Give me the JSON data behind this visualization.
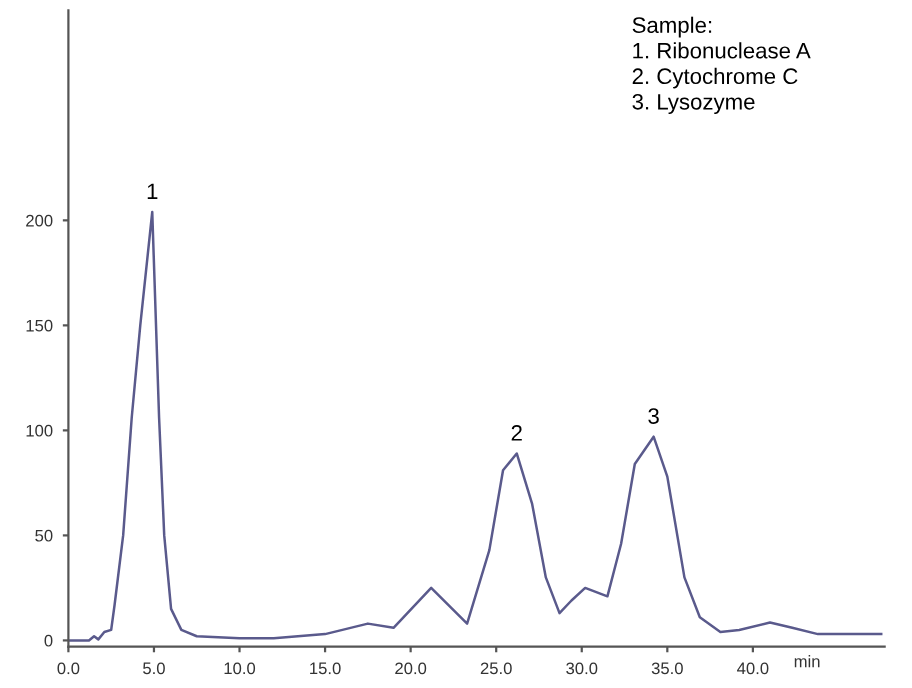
{
  "chart_data": {
    "type": "line",
    "xlabel": "min",
    "x": [
      0,
      1.2,
      1.5,
      1.75,
      2.1,
      2.5,
      2.7,
      3.2,
      3.7,
      4.2,
      4.9,
      5.3,
      5.6,
      6.0,
      6.6,
      7.5,
      10,
      12,
      15,
      17.5,
      19,
      21.2,
      23.3,
      24.6,
      25.4,
      26.2,
      27.1,
      27.9,
      28.7,
      29.4,
      30.2,
      31.5,
      32.3,
      33.1,
      34.2,
      35.0,
      36.0,
      36.9,
      38.1,
      39.2,
      41.0,
      42.3,
      43.8,
      47.5
    ],
    "series": [
      {
        "color": "#5a5a8c",
        "values": [
          0,
          0,
          2,
          0.5,
          4,
          5,
          17,
          50,
          106,
          150,
          204,
          106,
          50,
          15,
          5,
          2,
          1,
          1,
          3,
          8,
          6,
          25,
          8,
          43,
          81,
          89,
          65,
          30,
          13,
          19,
          25,
          21,
          46,
          84,
          97,
          78,
          30,
          11,
          4,
          5,
          8.5,
          6,
          3,
          3
        ]
      }
    ],
    "xlim": [
      0,
      47.7
    ],
    "ylim": [
      -3,
      300
    ],
    "xticks": [
      {
        "value": 0,
        "label": "0.0"
      },
      {
        "value": 5,
        "label": "5.0"
      },
      {
        "value": 10,
        "label": "10.0"
      },
      {
        "value": 15,
        "label": "15.0"
      },
      {
        "value": 20,
        "label": "20.0"
      },
      {
        "value": 25,
        "label": "25.0"
      },
      {
        "value": 30,
        "label": "30.0"
      },
      {
        "value": 35,
        "label": "35.0"
      },
      {
        "value": 40,
        "label": "40.0"
      }
    ],
    "yticks": [
      0,
      50,
      100,
      150,
      200
    ],
    "grid": false,
    "legend": false,
    "marker": "none",
    "line_style": "solid",
    "annotations": [
      {
        "text": "1",
        "x": 4.9,
        "y": 204
      },
      {
        "text": "2",
        "x": 26.2,
        "y": 89
      },
      {
        "text": "3",
        "x": 34.2,
        "y": 97
      },
      "Sample:\n1. Ribonuclease A\n2. Cytochrome C\n3. Lysozyme"
    ]
  }
}
